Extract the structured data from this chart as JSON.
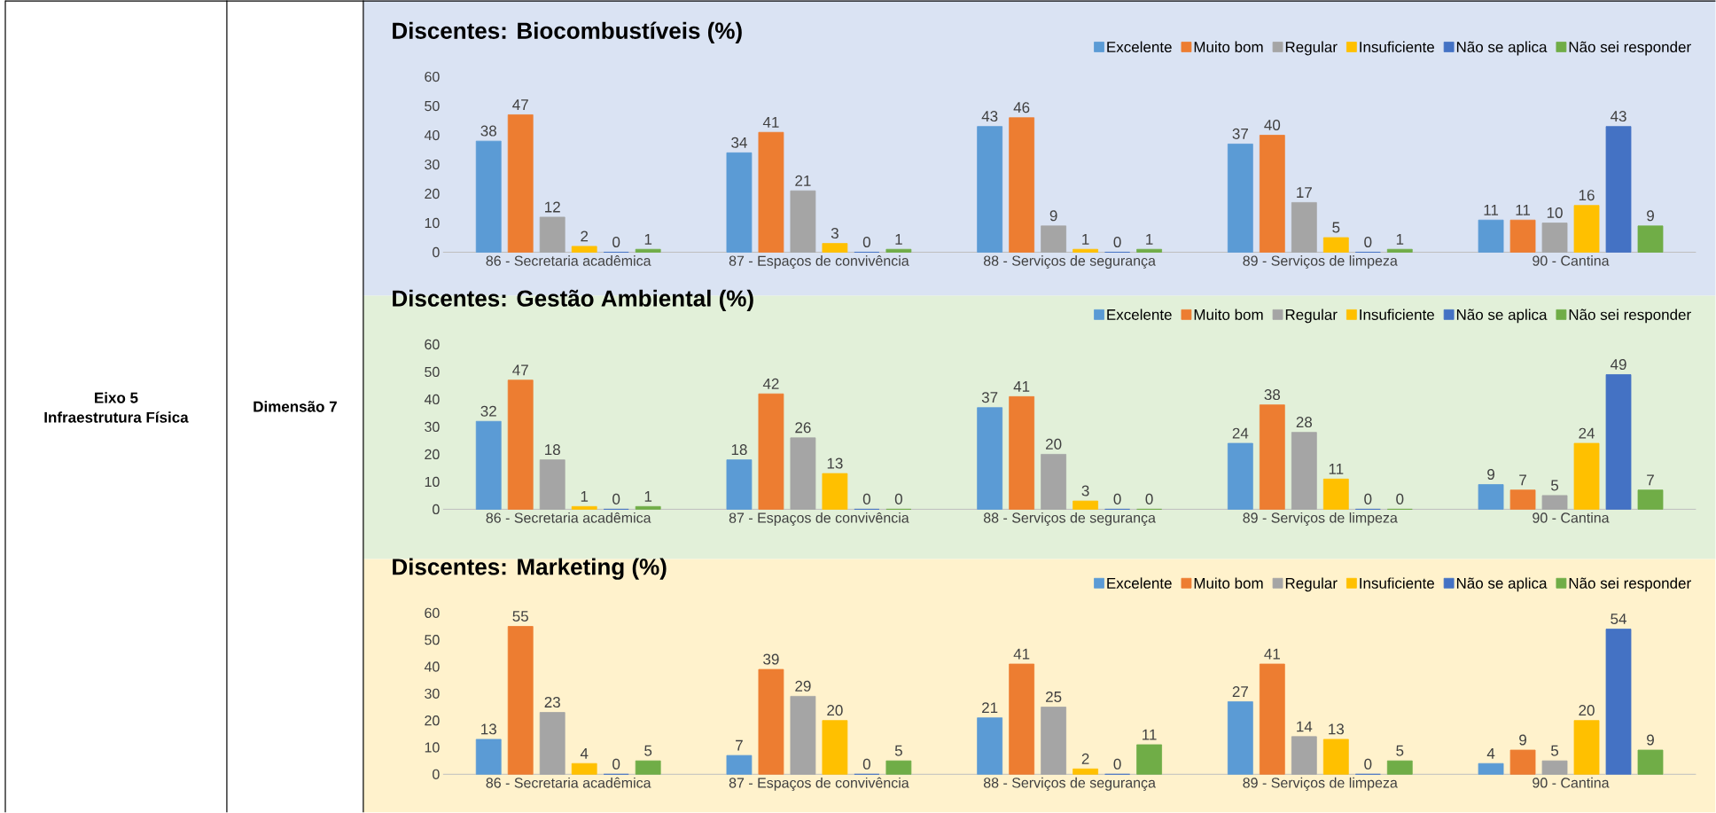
{
  "chart_data": [
    {
      "type": "other",
      "annotations": [
        "Eixo 5",
        "Infraestrutura Física",
        "Dimensão 7"
      ]
    },
    {
      "type": "bar",
      "title": "Discentes: Biocombustíveis (%)",
      "categories": [
        "86 - Secretaria acadêmica",
        "87 - Espaços de convivência",
        "88 - Serviços de segurança",
        "89 - Serviços de limpeza",
        "90 - Cantina"
      ],
      "series": [
        {
          "name": "Excelente",
          "color": "#5b9bd5",
          "values": [
            38,
            34,
            43,
            37,
            11
          ]
        },
        {
          "name": "Muito bom",
          "color": "#ed7d31",
          "values": [
            47,
            41,
            46,
            40,
            11
          ]
        },
        {
          "name": "Regular",
          "color": "#a5a5a5",
          "values": [
            12,
            21,
            9,
            17,
            10
          ]
        },
        {
          "name": "Insuficiente",
          "color": "#ffc000",
          "values": [
            2,
            3,
            1,
            5,
            16
          ]
        },
        {
          "name": "Não se aplica",
          "color": "#4472c4",
          "values": [
            0,
            0,
            0,
            0,
            43
          ]
        },
        {
          "name": "Não sei responder",
          "color": "#70ad47",
          "values": [
            1,
            1,
            1,
            1,
            9
          ]
        }
      ],
      "ylim": [
        0,
        60
      ],
      "yticks": [
        0,
        10,
        20,
        30,
        40,
        50,
        60
      ],
      "data_labels": true,
      "legend": "top right"
    },
    {
      "type": "bar",
      "title": "Discentes: Gestão Ambiental (%)",
      "categories": [
        "86 - Secretaria acadêmica",
        "87 - Espaços de convivência",
        "88 - Serviços de segurança",
        "89 - Serviços de limpeza",
        "90 - Cantina"
      ],
      "series": [
        {
          "name": "Excelente",
          "color": "#5b9bd5",
          "values": [
            32,
            18,
            37,
            24,
            9
          ]
        },
        {
          "name": "Muito bom",
          "color": "#ed7d31",
          "values": [
            47,
            42,
            41,
            38,
            7
          ]
        },
        {
          "name": "Regular",
          "color": "#a5a5a5",
          "values": [
            18,
            26,
            20,
            28,
            5
          ]
        },
        {
          "name": "Insuficiente",
          "color": "#ffc000",
          "values": [
            1,
            13,
            3,
            11,
            24
          ]
        },
        {
          "name": "Não se aplica",
          "color": "#4472c4",
          "values": [
            0,
            0,
            0,
            0,
            49
          ]
        },
        {
          "name": "Não sei responder",
          "color": "#70ad47",
          "values": [
            1,
            0,
            0,
            0,
            7
          ]
        }
      ],
      "ylim": [
        0,
        60
      ],
      "yticks": [
        0,
        10,
        20,
        30,
        40,
        50,
        60
      ],
      "data_labels": true,
      "legend": "top right"
    },
    {
      "type": "bar",
      "title": "Discentes: Marketing (%)",
      "categories": [
        "86 - Secretaria acadêmica",
        "87 - Espaços de convivência",
        "88 - Serviços de segurança",
        "89 - Serviços de limpeza",
        "90 - Cantina"
      ],
      "series": [
        {
          "name": "Excelente",
          "color": "#5b9bd5",
          "values": [
            13,
            7,
            21,
            27,
            4
          ]
        },
        {
          "name": "Muito bom",
          "color": "#ed7d31",
          "values": [
            55,
            39,
            41,
            41,
            9
          ]
        },
        {
          "name": "Regular",
          "color": "#a5a5a5",
          "values": [
            23,
            29,
            25,
            14,
            5
          ]
        },
        {
          "name": "Insuficiente",
          "color": "#ffc000",
          "values": [
            4,
            20,
            2,
            13,
            20
          ]
        },
        {
          "name": "Não se aplica",
          "color": "#4472c4",
          "values": [
            0,
            0,
            0,
            0,
            54
          ]
        },
        {
          "name": "Não sei responder",
          "color": "#70ad47",
          "values": [
            5,
            5,
            11,
            5,
            9
          ]
        }
      ],
      "ylim": [
        0,
        60
      ],
      "yticks": [
        0,
        10,
        20,
        30,
        40,
        50,
        60
      ],
      "data_labels": true,
      "legend": "top right"
    }
  ]
}
